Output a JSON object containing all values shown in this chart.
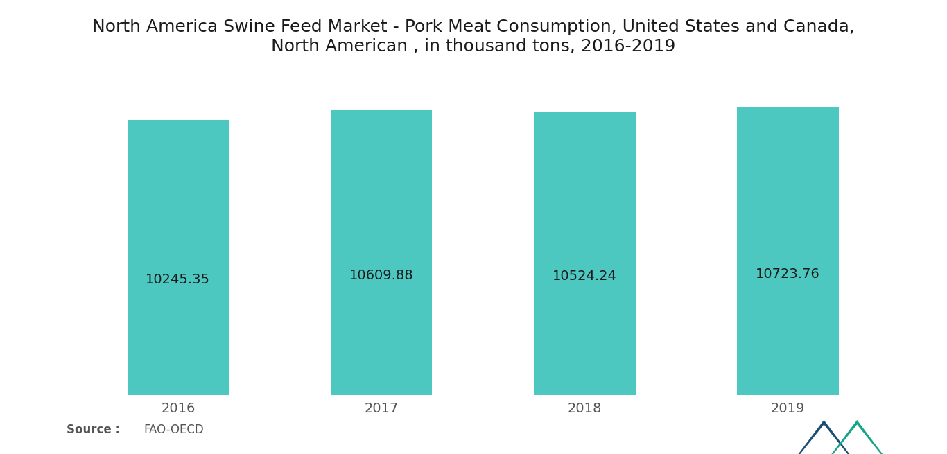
{
  "title": "North America Swine Feed Market - Pork Meat Consumption, United States and Canada,\nNorth American , in thousand tons, 2016-2019",
  "categories": [
    "2016",
    "2017",
    "2018",
    "2019"
  ],
  "values": [
    10245.35,
    10609.88,
    10524.24,
    10723.76
  ],
  "bar_color": "#4DC8C0",
  "label_color": "#1a1a1a",
  "background_color": "#ffffff",
  "label_fontsize": 14,
  "title_fontsize": 18,
  "tick_fontsize": 14,
  "ylim_min": 0,
  "ylim_max": 11500,
  "bar_width": 0.5
}
